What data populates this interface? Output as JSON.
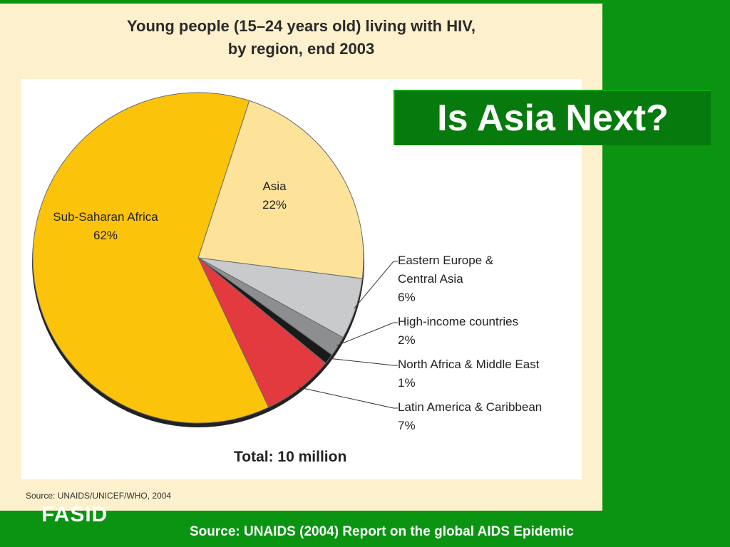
{
  "slide": {
    "title": "Is Asia Next?",
    "logo": "FASID",
    "source": "Source: UNAIDS (2004)  Report on the global AIDS Epidemic"
  },
  "figure": {
    "title_line1": "Young people (15–24 years old) living with HIV,",
    "title_line2": "by region, end 2003",
    "source_note": "Source: UNAIDS/UNICEF/WHO, 2004"
  },
  "chart_data": {
    "type": "pie",
    "title": "Young people (15–24 years old) living with HIV, by region, end 2003",
    "total_label": "Total: 10 million",
    "slices": [
      {
        "name": "Asia",
        "value": 22,
        "pct_label": "22%",
        "color": "#fde39a",
        "name_lines": [
          "Asia"
        ],
        "label_style": "inside"
      },
      {
        "name": "Eastern Europe & Central Asia",
        "value": 6,
        "pct_label": "6%",
        "color": "#c9cacb",
        "name_lines": [
          "Eastern Europe &",
          "Central Asia"
        ],
        "label_style": "callout"
      },
      {
        "name": "High-income countries",
        "value": 2,
        "pct_label": "2%",
        "color": "#8d8e90",
        "name_lines": [
          "High-income countries"
        ],
        "label_style": "callout"
      },
      {
        "name": "North Africa & Middle East",
        "value": 1,
        "pct_label": "1%",
        "color": "#1a1a1a",
        "name_lines": [
          "North Africa & Middle East"
        ],
        "label_style": "callout"
      },
      {
        "name": "Latin America & Caribbean",
        "value": 7,
        "pct_label": "7%",
        "color": "#e23a3f",
        "name_lines": [
          "Latin America & Caribbean"
        ],
        "label_style": "callout"
      },
      {
        "name": "Sub-Saharan Africa",
        "value": 62,
        "pct_label": "62%",
        "color": "#fbc40b",
        "name_lines": [
          "Sub-Saharan Africa"
        ],
        "label_style": "inside"
      }
    ]
  }
}
